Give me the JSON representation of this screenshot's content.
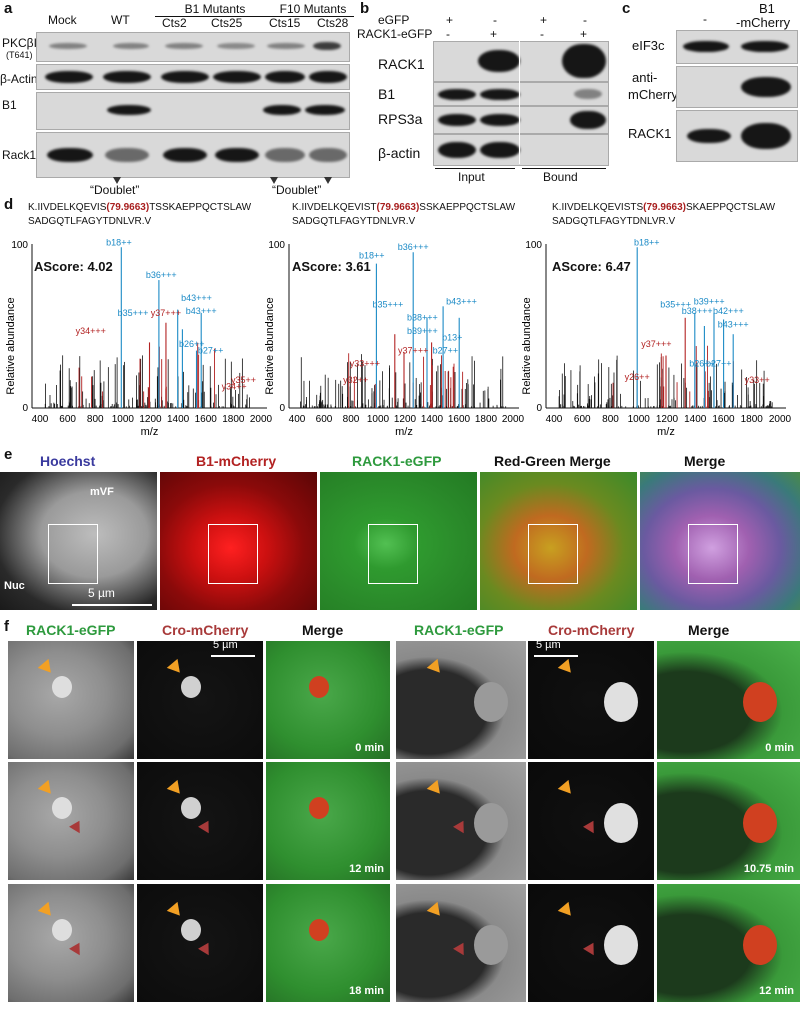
{
  "panel_a": {
    "letter": "a",
    "col_mock": "Mock",
    "col_wt": "WT",
    "group_b1": "B1 Mutants",
    "group_f10": "F10 Mutants",
    "col_cts2": "Cts2",
    "col_cts25": "Cts25",
    "col_cts15": "Cts15",
    "col_cts28": "Cts28",
    "row_pkc": "PKCβII",
    "row_pkc_sub": "(T641)",
    "row_actin": "β-Actin",
    "row_b1": "B1",
    "row_rack1": "Rack1",
    "doublet_left": "“Doublet”",
    "doublet_right": "“Doublet”"
  },
  "panel_b": {
    "letter": "b",
    "row_egfp": "eGFP",
    "row_rack1egfp": "RACK1-eGFP",
    "signs_egfp": [
      "+",
      "-",
      "+",
      "-"
    ],
    "signs_rack1": [
      "-",
      "+",
      "-",
      "+"
    ],
    "blot_rack1": "RACK1",
    "blot_b1": "B1",
    "blot_rps3a": "RPS3a",
    "blot_actin": "β-actin",
    "input": "Input",
    "bound": "Bound"
  },
  "panel_c": {
    "letter": "c",
    "col_minus": "-",
    "col_b1": "B1",
    "col_b1_sub": "-mCherry",
    "row_eif3c": "eIF3c",
    "row_anti": "anti-",
    "row_anti_sub": "mCherry",
    "row_rack1": "RACK1"
  },
  "panel_d": {
    "letter": "d",
    "ylabel": "Relative abundance",
    "xlabel": "m/z",
    "ytick_top": "100",
    "ytick_bottom": "0",
    "xticks": [
      "400",
      "600",
      "800",
      "1000",
      "1200",
      "1400",
      "1600",
      "1800",
      "2000"
    ],
    "spectra": [
      {
        "seq1a": "K.IIVDELKQEVIS",
        "seq1mod": "(79.9663)",
        "seq1b": "TSSKAEPPQCTSLAW",
        "seq2": "SADGQTLFAGYTDNLVR.V",
        "ascore": "AScore: 4.02",
        "ions": [
          "b18++",
          "b36+++",
          "b43+++",
          "b35+++",
          "y37+++",
          "b43+++",
          "y34+++",
          "b26++",
          "b27++",
          "y35++",
          "y34++"
        ]
      },
      {
        "seq1a": "K.IIVDELKQEVIST",
        "seq1mod": "(79.9663)",
        "seq1b": "SSKAEPPQCTSLAW",
        "seq2": "SADGQTLFAGYTDNLVR.V",
        "ascore": "AScore: 3.61",
        "ions": [
          "b18++",
          "b36+++",
          "b43+++",
          "b35+++",
          "b38+++",
          "b39+++",
          "b13+",
          "b27++",
          "y37+++",
          "y33+++",
          "y32++"
        ]
      },
      {
        "seq1a": "K.IIVDELKQEVISTS",
        "seq1mod": "(79.9663)",
        "seq1b": "SKAEPPQCTSLAW",
        "seq2": "SADGQTLFAGYTDNLVR.V",
        "ascore": "AScore: 6.47",
        "ions": [
          "b18++",
          "b35+++",
          "b39+++",
          "b38+++",
          "b42+++",
          "b43+++",
          "y37+++",
          "b26++",
          "b27++",
          "y26++",
          "y33++"
        ]
      }
    ]
  },
  "panel_e": {
    "letter": "e",
    "t_hoechst": "Hoechst",
    "t_b1": "B1-mCherry",
    "t_rack1": "RACK1-eGFP",
    "t_rg": "Red-Green Merge",
    "t_merge": "Merge",
    "mvf": "mVF",
    "nuc": "Nuc",
    "scale": "5 µm",
    "color_blue": "#3a3a9e",
    "color_red": "#b22222",
    "color_green": "#2e9a3e"
  },
  "panel_f": {
    "letter": "f",
    "t_rack1": "RACK1-eGFP",
    "t_cro": "Cro-mCherry",
    "t_merge": "Merge",
    "scale": "5 µm",
    "times_left": [
      "0 min",
      "12 min",
      "18 min"
    ],
    "times_right": [
      "0 min",
      "10.75 min",
      "12 min"
    ]
  }
}
